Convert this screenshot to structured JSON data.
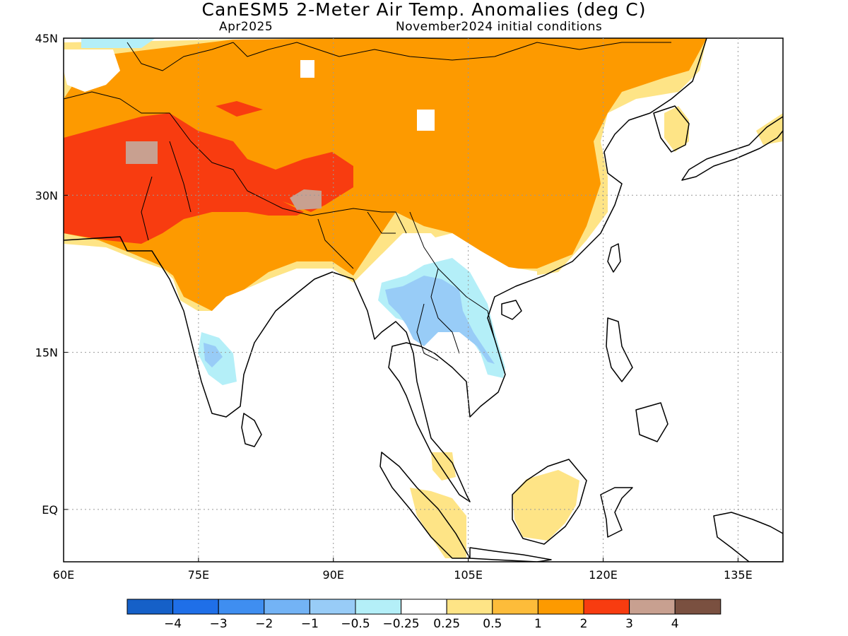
{
  "title": "CanESM5 2-Meter Air Temp. Anomalies (deg C)",
  "subtitle_month": "Apr2025",
  "subtitle_ic": "November2024 initial conditions",
  "lon_ticks": [
    "60E",
    "75E",
    "90E",
    "105E",
    "120E",
    "135E"
  ],
  "lat_ticks": [
    "45N",
    "30N",
    "15N",
    "EQ"
  ],
  "colorbar": {
    "colors": [
      "#1560c8",
      "#1f6fe8",
      "#3f8ef0",
      "#73b3f5",
      "#98ccf7",
      "#b4eff8",
      "#ffffff",
      "#fee486",
      "#fdbc3a",
      "#fd9a00",
      "#f83c10",
      "#c8a090",
      "#7a5040"
    ],
    "labels": [
      "−4",
      "−3",
      "−2",
      "−1",
      "−0.5",
      "−0.25",
      "0.25",
      "0.5",
      "1",
      "2",
      "3",
      "4"
    ]
  },
  "map": {
    "extent": {
      "lon": [
        60,
        140
      ],
      "lat": [
        -5,
        45
      ]
    },
    "grid": "dotted"
  }
}
